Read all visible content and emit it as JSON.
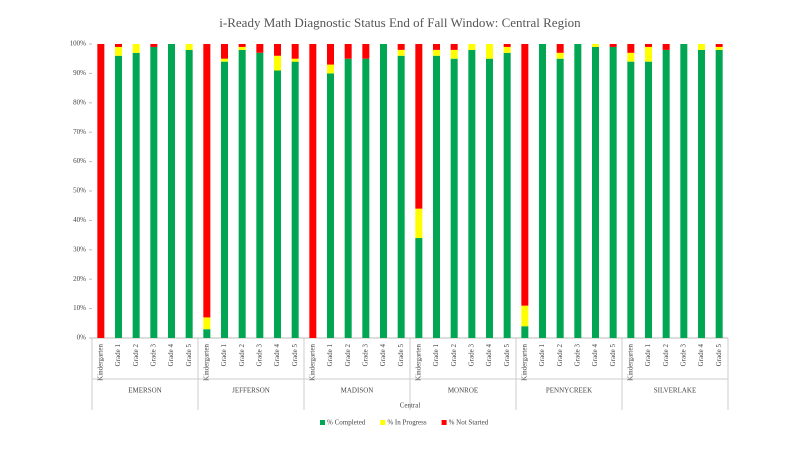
{
  "chart_data": {
    "type": "stacked_bar",
    "title": "i-Ready Math Diagnostic Status End of Fall Window: Central Region",
    "x_label": "Central",
    "groups": [
      "EMERSON",
      "JEFFERSON",
      "MADISON",
      "MONROE",
      "PENNYCREEK",
      "SILVERLAKE"
    ],
    "categories": [
      "Kindergarten",
      "Grade 1",
      "Grade 2",
      "Grade 3",
      "Grade 4",
      "Grade 5",
      "Kindergarten",
      "Grade 1",
      "Grade 2",
      "Grade 3",
      "Grade 4",
      "Grade 5",
      "Kindergarten",
      "Grade 1",
      "Grade 2",
      "Grade 3",
      "Grade 4",
      "Grade 5",
      "Kindergarten",
      "Grade 1",
      "Grade 2",
      "Grade 3",
      "Grade 4",
      "Grade 5",
      "Kindergarten",
      "Grade 1",
      "Grade 2",
      "Grade 3",
      "Grade 4",
      "Grade 5",
      "Kindergarten",
      "Grade 1",
      "Grade 2",
      "Grade 3",
      "Grade 4",
      "Grade 5"
    ],
    "series": [
      {
        "name": "% Completed",
        "color": "#00a651",
        "values": [
          0,
          96,
          97,
          99,
          100,
          98,
          3,
          94,
          98,
          97,
          91,
          94,
          0,
          90,
          95,
          95,
          100,
          96,
          34,
          96,
          95,
          98,
          95,
          97,
          4,
          100,
          95,
          100,
          99,
          99,
          94,
          94,
          98,
          100,
          98,
          98
        ]
      },
      {
        "name": "% In Progress",
        "color": "#ffff00",
        "values": [
          0,
          3,
          3,
          0,
          0,
          2,
          4,
          1,
          1,
          0,
          5,
          1,
          0,
          3,
          0,
          0,
          0,
          2,
          10,
          2,
          3,
          2,
          5,
          2,
          7,
          0,
          2,
          0,
          1,
          0,
          3,
          5,
          0,
          0,
          2,
          1
        ]
      },
      {
        "name": "% Not Started",
        "color": "#ff0000",
        "values": [
          100,
          1,
          0,
          1,
          0,
          0,
          93,
          5,
          1,
          3,
          4,
          5,
          100,
          7,
          5,
          5,
          0,
          2,
          56,
          2,
          2,
          0,
          0,
          1,
          89,
          0,
          3,
          0,
          0,
          1,
          3,
          1,
          2,
          0,
          0,
          1
        ]
      }
    ],
    "ylim": [
      0,
      100
    ],
    "yticks": [
      {
        "value": 0,
        "label": "0%"
      },
      {
        "value": 10,
        "label": "10%"
      },
      {
        "value": 20,
        "label": "20%"
      },
      {
        "value": 30,
        "label": "30%"
      },
      {
        "value": 40,
        "label": "40%"
      },
      {
        "value": 50,
        "label": "50%"
      },
      {
        "value": 60,
        "label": "60%"
      },
      {
        "value": 70,
        "label": "70%"
      },
      {
        "value": 80,
        "label": "80%"
      },
      {
        "value": 90,
        "label": "90%"
      },
      {
        "value": 100,
        "label": "100%"
      }
    ],
    "legend": "bottom"
  }
}
